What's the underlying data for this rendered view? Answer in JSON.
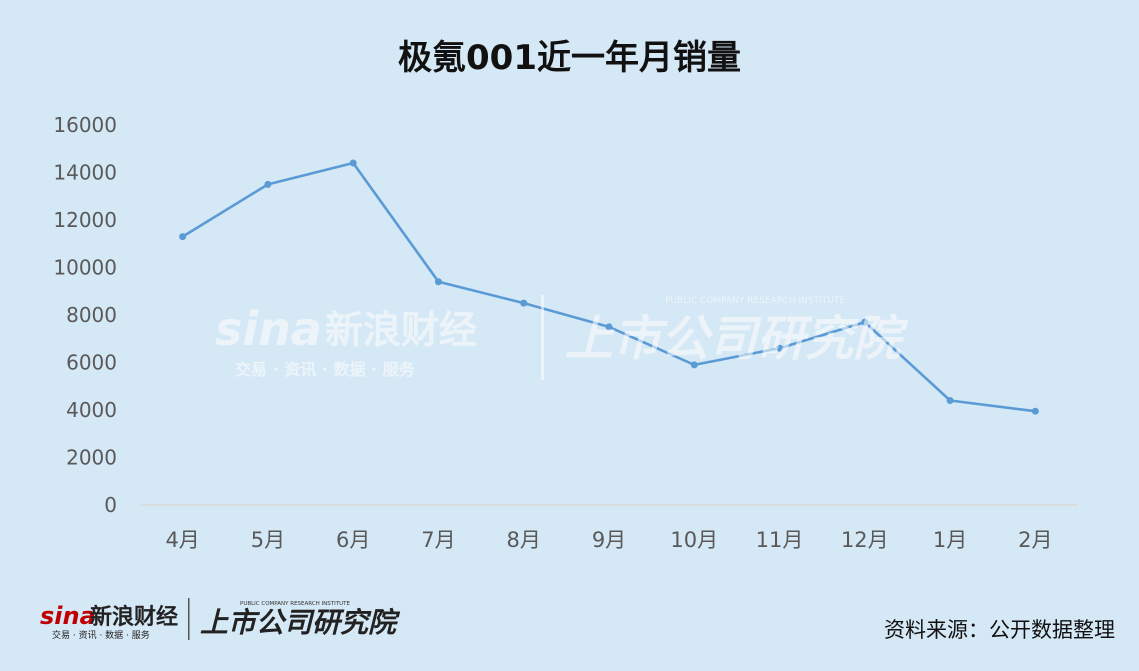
{
  "colors": {
    "background": "#d5e8f5",
    "line": "#5b9bd5",
    "axis": "#d9d9d9",
    "text": "#595959"
  },
  "branding": {
    "sina_logo_text": "sina",
    "sina_name": "新浪财经",
    "sina_tagline": "交易 · 资讯 · 数据 · 服务",
    "institute_name": "上市公司研究院",
    "institute_subtitle": "PUBLIC COMPANY RESEARCH INSTITUTE"
  },
  "source_note": "资料来源：公开数据整理",
  "chart_data": {
    "type": "line",
    "title": "极氪001近一年月销量",
    "xlabel": "",
    "ylabel": "",
    "categories": [
      "4月",
      "5月",
      "6月",
      "7月",
      "8月",
      "9月",
      "10月",
      "11月",
      "12月",
      "1月",
      "2月"
    ],
    "series": [
      {
        "values": [
          11300,
          13500,
          14400,
          9400,
          8500,
          7500,
          5900,
          6600,
          7700,
          4400,
          3950
        ]
      }
    ],
    "ylim": [
      0,
      16000
    ],
    "yticks": [
      0,
      2000,
      4000,
      6000,
      8000,
      10000,
      12000,
      14000,
      16000
    ],
    "grid": false,
    "legend": "none"
  }
}
